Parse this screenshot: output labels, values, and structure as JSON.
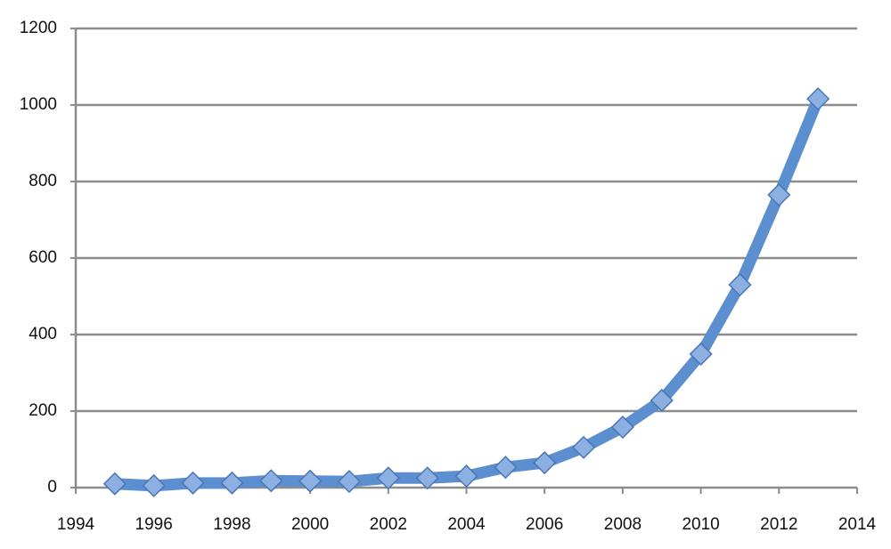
{
  "chart_data": {
    "type": "line",
    "x": [
      1995,
      1996,
      1997,
      1998,
      1999,
      2000,
      2001,
      2002,
      2003,
      2004,
      2005,
      2006,
      2007,
      2008,
      2009,
      2010,
      2011,
      2012,
      2013
    ],
    "series": [
      {
        "color": "#5b8fcf",
        "marker_fill": "#8db0e2",
        "marker_stroke": "#4a76b5",
        "values": [
          10,
          5,
          12,
          12,
          18,
          17,
          16,
          25,
          25,
          30,
          53,
          65,
          105,
          158,
          228,
          349,
          530,
          765,
          1016
        ]
      }
    ],
    "xlim": [
      1994,
      2014
    ],
    "xticks": [
      1994,
      1996,
      1998,
      2000,
      2002,
      2004,
      2006,
      2008,
      2010,
      2012,
      2014
    ],
    "ylim": [
      0,
      1200
    ],
    "yticks": [
      0,
      200,
      400,
      600,
      800,
      1000,
      1200
    ],
    "grid": true
  }
}
